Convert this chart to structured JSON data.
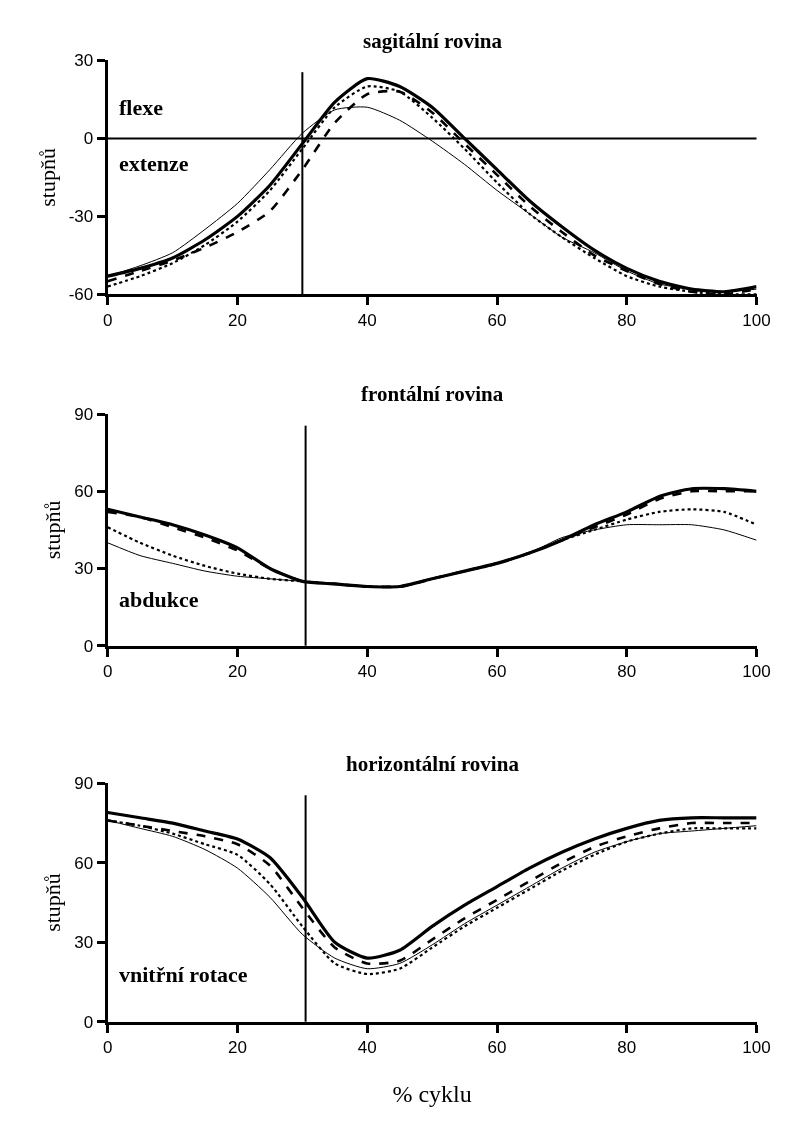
{
  "chart_data": [
    {
      "type": "line",
      "title": "sagitální rovina",
      "ylabel": "stupňů",
      "x": [
        0,
        5,
        10,
        15,
        20,
        25,
        30,
        35,
        40,
        45,
        50,
        55,
        60,
        65,
        70,
        75,
        80,
        85,
        90,
        95,
        100
      ],
      "xlim": [
        0,
        100
      ],
      "xticks": [
        0,
        20,
        40,
        60,
        80,
        100
      ],
      "ylim": [
        -60,
        30
      ],
      "yticks": [
        -60,
        -30,
        0,
        30
      ],
      "series": [
        {
          "color": "#000000",
          "line_style": "solid",
          "values": [
            -53,
            -50,
            -46,
            -39,
            -30,
            -18,
            -2,
            14,
            23,
            20,
            12,
            0,
            -12,
            -24,
            -34,
            -43,
            -50,
            -55,
            -58,
            -59,
            -57
          ]
        },
        {
          "color": "#000000",
          "line_style": "dashed",
          "values": [
            -55,
            -51,
            -47,
            -42,
            -36,
            -28,
            -12,
            6,
            17,
            18,
            10,
            -2,
            -14,
            -26,
            -36,
            -45,
            -51,
            -56,
            -59,
            -60,
            -58
          ]
        },
        {
          "color": "#000000",
          "line_style": "dotted",
          "values": [
            -57,
            -53,
            -48,
            -41,
            -32,
            -20,
            -4,
            12,
            20,
            18,
            8,
            -4,
            -17,
            -29,
            -38,
            -46,
            -53,
            -57,
            -59,
            -60,
            -60
          ]
        },
        {
          "color": "#000000",
          "line_style": "solid",
          "values": [
            -53,
            -49,
            -44,
            -35,
            -25,
            -12,
            2,
            11,
            12,
            7,
            -1,
            -10,
            -20,
            -29,
            -38,
            -44,
            -51,
            -56,
            -58,
            -59,
            -58
          ]
        }
      ],
      "ref_lines": [
        {
          "axis": "x",
          "value": 30
        },
        {
          "axis": "y",
          "value": 0
        }
      ],
      "annotations": [
        "flexe",
        "extenze"
      ]
    },
    {
      "type": "line",
      "title": "frontální rovina",
      "ylabel": "stupňů",
      "x": [
        0,
        5,
        10,
        15,
        20,
        25,
        30,
        35,
        40,
        45,
        50,
        55,
        60,
        65,
        70,
        75,
        80,
        85,
        90,
        95,
        100
      ],
      "xlim": [
        0,
        100
      ],
      "xticks": [
        0,
        20,
        40,
        60,
        80,
        100
      ],
      "ylim": [
        0,
        90
      ],
      "yticks": [
        0,
        30,
        60,
        90
      ],
      "series": [
        {
          "color": "#000000",
          "line_style": "solid",
          "values": [
            53,
            50,
            47,
            43,
            38,
            30,
            25,
            24,
            23,
            23,
            26,
            29,
            32,
            36,
            41,
            47,
            52,
            58,
            61,
            61,
            60
          ]
        },
        {
          "color": "#000000",
          "line_style": "dashed",
          "values": [
            52,
            50,
            46,
            42,
            37,
            30,
            25,
            24,
            23,
            23,
            26,
            29,
            32,
            36,
            41,
            46,
            51,
            57,
            60,
            60,
            60
          ]
        },
        {
          "color": "#000000",
          "line_style": "dotted",
          "values": [
            46,
            40,
            35,
            31,
            28,
            26,
            25,
            24,
            23,
            23,
            26,
            29,
            32,
            36,
            41,
            45,
            49,
            52,
            53,
            52,
            47
          ]
        },
        {
          "color": "#000000",
          "line_style": "solid",
          "values": [
            40,
            35,
            32,
            29,
            27,
            26,
            25,
            24,
            23,
            23,
            26,
            29,
            32,
            36,
            42,
            45,
            47,
            47,
            47,
            45,
            41
          ]
        }
      ],
      "ref_lines": [
        {
          "axis": "x",
          "value": 30.5
        }
      ],
      "annotations": [
        "abdukce"
      ]
    },
    {
      "type": "line",
      "title": "horizontální rovina",
      "xlabel": "% cyklu",
      "ylabel": "stupňů",
      "x": [
        0,
        5,
        10,
        15,
        20,
        25,
        30,
        35,
        40,
        45,
        50,
        55,
        60,
        65,
        70,
        75,
        80,
        85,
        90,
        95,
        100
      ],
      "xlim": [
        0,
        100
      ],
      "xticks": [
        0,
        20,
        40,
        60,
        80,
        100
      ],
      "ylim": [
        0,
        90
      ],
      "yticks": [
        0,
        30,
        60,
        90
      ],
      "series": [
        {
          "color": "#000000",
          "line_style": "solid",
          "values": [
            79,
            77,
            75,
            72,
            69,
            62,
            47,
            30,
            24,
            27,
            36,
            44,
            51,
            58,
            64,
            69,
            73,
            76,
            77,
            77,
            77
          ]
        },
        {
          "color": "#000000",
          "line_style": "dashed",
          "values": [
            76,
            74,
            72,
            70,
            67,
            59,
            43,
            28,
            22,
            23,
            31,
            39,
            46,
            53,
            60,
            66,
            70,
            73,
            75,
            75,
            75
          ]
        },
        {
          "color": "#000000",
          "line_style": "dotted",
          "values": [
            76,
            74,
            71,
            67,
            63,
            52,
            36,
            22,
            18,
            20,
            28,
            36,
            43,
            50,
            57,
            63,
            68,
            71,
            73,
            73,
            73
          ]
        },
        {
          "color": "#000000",
          "line_style": "solid",
          "values": [
            76,
            73,
            70,
            65,
            58,
            47,
            33,
            24,
            20,
            22,
            29,
            37,
            44,
            51,
            58,
            64,
            68,
            71,
            72,
            73,
            74
          ]
        }
      ],
      "ref_lines": [
        {
          "axis": "x",
          "value": 30.5
        }
      ],
      "annotations": [
        "vnitřní rotace"
      ]
    }
  ]
}
